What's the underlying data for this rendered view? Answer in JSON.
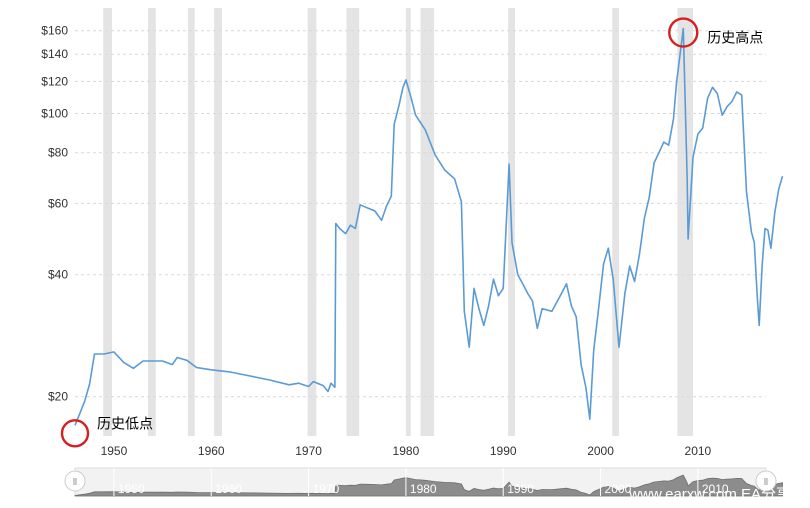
{
  "chart_data": {
    "type": "line",
    "title": "",
    "xlabel": "",
    "ylabel": "",
    "x_range": [
      1946,
      2017
    ],
    "y_scale": "log",
    "ylim": [
      16,
      180
    ],
    "x_ticks": [
      "1950",
      "1960",
      "1970",
      "1980",
      "1990",
      "2000",
      "2010"
    ],
    "y_ticks": [
      {
        "value": 20,
        "label": "$20"
      },
      {
        "value": 40,
        "label": "$40"
      },
      {
        "value": 60,
        "label": "$60"
      },
      {
        "value": 80,
        "label": "$80"
      },
      {
        "value": 100,
        "label": "$100"
      },
      {
        "value": 120,
        "label": "$120"
      },
      {
        "value": 140,
        "label": "$140"
      },
      {
        "value": 160,
        "label": "$160"
      }
    ],
    "grid": true,
    "line_color": "#5b9bd5",
    "recession_color": "#e4e4e4",
    "recessions": [
      [
        1948.9,
        1949.8
      ],
      [
        1953.5,
        1954.3
      ],
      [
        1957.6,
        1958.3
      ],
      [
        1960.3,
        1961.1
      ],
      [
        1969.9,
        1970.8
      ],
      [
        1973.9,
        1975.2
      ],
      [
        1980.0,
        1980.5
      ],
      [
        1981.5,
        1982.9
      ],
      [
        1990.5,
        1991.2
      ],
      [
        2001.2,
        2001.9
      ],
      [
        2007.9,
        2009.5
      ]
    ],
    "series": [
      {
        "points": [
          [
            1946.0,
            17.0
          ],
          [
            1946.5,
            18.2
          ],
          [
            1947.0,
            19.5
          ],
          [
            1947.5,
            21.5
          ],
          [
            1948.0,
            25.5
          ],
          [
            1949.0,
            25.5
          ],
          [
            1950.0,
            25.8
          ],
          [
            1951.0,
            24.3
          ],
          [
            1952.0,
            23.5
          ],
          [
            1953.0,
            24.5
          ],
          [
            1955.0,
            24.5
          ],
          [
            1956.0,
            24.0
          ],
          [
            1956.5,
            25.0
          ],
          [
            1957.5,
            24.6
          ],
          [
            1958.5,
            23.6
          ],
          [
            1960.0,
            23.3
          ],
          [
            1962.0,
            23.0
          ],
          [
            1964.0,
            22.5
          ],
          [
            1966.0,
            22.0
          ],
          [
            1968.0,
            21.4
          ],
          [
            1969.0,
            21.6
          ],
          [
            1970.0,
            21.2
          ],
          [
            1970.5,
            21.8
          ],
          [
            1971.5,
            21.3
          ],
          [
            1972.0,
            20.6
          ],
          [
            1972.3,
            21.6
          ],
          [
            1972.7,
            21.1
          ],
          [
            1972.8,
            53.5
          ],
          [
            1973.2,
            52.0
          ],
          [
            1973.8,
            50.5
          ],
          [
            1974.3,
            53.0
          ],
          [
            1974.8,
            52.0
          ],
          [
            1975.3,
            59.5
          ],
          [
            1976.0,
            58.5
          ],
          [
            1976.8,
            57.5
          ],
          [
            1977.5,
            54.5
          ],
          [
            1978.0,
            59.0
          ],
          [
            1978.5,
            62.5
          ],
          [
            1978.8,
            94.0
          ],
          [
            1979.3,
            105.0
          ],
          [
            1979.7,
            116.0
          ],
          [
            1980.0,
            121.0
          ],
          [
            1980.5,
            110.0
          ],
          [
            1981.0,
            99.0
          ],
          [
            1981.5,
            95.0
          ],
          [
            1982.0,
            91.0
          ],
          [
            1983.0,
            79.0
          ],
          [
            1984.0,
            72.5
          ],
          [
            1985.0,
            69.0
          ],
          [
            1985.7,
            60.5
          ],
          [
            1986.0,
            32.5
          ],
          [
            1986.5,
            26.5
          ],
          [
            1987.0,
            37.0
          ],
          [
            1987.5,
            33.0
          ],
          [
            1988.0,
            30.0
          ],
          [
            1988.5,
            33.5
          ],
          [
            1989.0,
            39.0
          ],
          [
            1989.5,
            35.5
          ],
          [
            1990.0,
            37.0
          ],
          [
            1990.6,
            75.0
          ],
          [
            1990.9,
            48.0
          ],
          [
            1991.5,
            40.0
          ],
          [
            1992.0,
            38.0
          ],
          [
            1992.5,
            36.0
          ],
          [
            1993.0,
            34.5
          ],
          [
            1993.5,
            29.5
          ],
          [
            1994.0,
            33.0
          ],
          [
            1995.0,
            32.5
          ],
          [
            1996.0,
            36.0
          ],
          [
            1996.5,
            38.0
          ],
          [
            1997.0,
            33.5
          ],
          [
            1997.5,
            31.5
          ],
          [
            1998.0,
            24.0
          ],
          [
            1998.5,
            21.0
          ],
          [
            1998.9,
            17.6
          ],
          [
            1999.3,
            26.0
          ],
          [
            1999.8,
            33.0
          ],
          [
            2000.3,
            42.5
          ],
          [
            2000.8,
            46.5
          ],
          [
            2001.3,
            39.0
          ],
          [
            2001.9,
            26.5
          ],
          [
            2002.5,
            36.0
          ],
          [
            2003.0,
            42.0
          ],
          [
            2003.5,
            38.5
          ],
          [
            2004.0,
            45.0
          ],
          [
            2004.5,
            55.0
          ],
          [
            2005.0,
            62.0
          ],
          [
            2005.5,
            75.5
          ],
          [
            2006.0,
            80.0
          ],
          [
            2006.5,
            85.0
          ],
          [
            2007.0,
            83.5
          ],
          [
            2007.5,
            97.0
          ],
          [
            2007.8,
            119.0
          ],
          [
            2008.3,
            148.0
          ],
          [
            2008.5,
            162.0
          ],
          [
            2008.9,
            68.5
          ],
          [
            2009.0,
            49.0
          ],
          [
            2009.5,
            78.0
          ],
          [
            2010.0,
            89.0
          ],
          [
            2010.5,
            92.0
          ],
          [
            2011.0,
            109.0
          ],
          [
            2011.5,
            116.0
          ],
          [
            2012.0,
            112.0
          ],
          [
            2012.5,
            99.0
          ],
          [
            2013.0,
            104.0
          ],
          [
            2013.5,
            107.0
          ],
          [
            2014.0,
            113.0
          ],
          [
            2014.5,
            111.0
          ],
          [
            2015.0,
            64.0
          ],
          [
            2015.5,
            51.0
          ],
          [
            2015.8,
            48.0
          ],
          [
            2016.1,
            35.5
          ],
          [
            2016.3,
            30.0
          ],
          [
            2016.6,
            42.0
          ],
          [
            2016.9,
            52.0
          ],
          [
            2017.2,
            51.5
          ],
          [
            2017.5,
            46.5
          ],
          [
            2017.9,
            57.0
          ],
          [
            2018.3,
            65.0
          ],
          [
            2018.7,
            70.0
          ]
        ]
      }
    ],
    "annotations": [
      {
        "text": "历史低点",
        "x": 1946.0,
        "y": 17.0
      },
      {
        "text": "历史高点",
        "x": 2008.5,
        "y": 162.0
      }
    ]
  },
  "navigator": {
    "ticks": [
      "1950",
      "1960",
      "1970",
      "1980",
      "1990",
      "2000",
      "2010"
    ],
    "left_handle_label": "Ⅱ",
    "right_handle_label": "Ⅱ"
  },
  "watermark": "www.earxw.com  EA分享网"
}
